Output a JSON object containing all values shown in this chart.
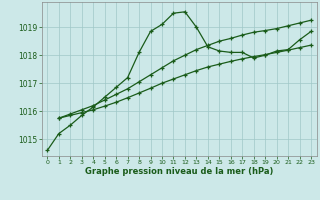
{
  "line1_x": [
    0,
    1,
    2,
    3,
    4,
    5,
    6,
    7,
    8,
    9,
    10,
    11,
    12,
    13,
    14,
    15,
    16,
    17,
    18,
    19,
    20,
    21,
    22,
    23
  ],
  "line1_y": [
    1014.6,
    1015.2,
    1015.5,
    1015.85,
    1016.15,
    1016.5,
    1016.85,
    1017.2,
    1018.1,
    1018.85,
    1019.1,
    1019.5,
    1019.55,
    1019.0,
    1018.3,
    1018.15,
    1018.1,
    1018.1,
    1017.9,
    1018.0,
    1018.15,
    1018.2,
    1018.55,
    1018.85
  ],
  "line2_x": [
    1,
    2,
    3,
    4,
    5,
    6,
    7,
    8,
    9,
    10,
    11,
    12,
    13,
    14,
    15,
    16,
    17,
    18,
    19,
    20,
    21,
    22,
    23
  ],
  "line2_y": [
    1015.75,
    1015.9,
    1016.05,
    1016.2,
    1016.4,
    1016.6,
    1016.8,
    1017.05,
    1017.3,
    1017.55,
    1017.8,
    1018.0,
    1018.2,
    1018.35,
    1018.5,
    1018.6,
    1018.72,
    1018.82,
    1018.88,
    1018.95,
    1019.05,
    1019.15,
    1019.25
  ],
  "line3_x": [
    1,
    2,
    3,
    4,
    5,
    6,
    7,
    8,
    9,
    10,
    11,
    12,
    13,
    14,
    15,
    16,
    17,
    18,
    19,
    20,
    21,
    22,
    23
  ],
  "line3_y": [
    1015.75,
    1015.85,
    1015.95,
    1016.05,
    1016.18,
    1016.32,
    1016.48,
    1016.65,
    1016.82,
    1017.0,
    1017.15,
    1017.3,
    1017.45,
    1017.58,
    1017.68,
    1017.78,
    1017.87,
    1017.95,
    1018.02,
    1018.1,
    1018.18,
    1018.27,
    1018.36
  ],
  "line_color": "#1a5c1a",
  "bg_color": "#cce8e8",
  "grid_color": "#a0c8c8",
  "xlabel": "Graphe pression niveau de la mer (hPa)",
  "yticks": [
    1015,
    1016,
    1017,
    1018,
    1019
  ],
  "xticks": [
    0,
    1,
    2,
    3,
    4,
    5,
    6,
    7,
    8,
    9,
    10,
    11,
    12,
    13,
    14,
    15,
    16,
    17,
    18,
    19,
    20,
    21,
    22,
    23
  ],
  "ylim": [
    1014.4,
    1019.9
  ],
  "xlim": [
    -0.5,
    23.5
  ]
}
